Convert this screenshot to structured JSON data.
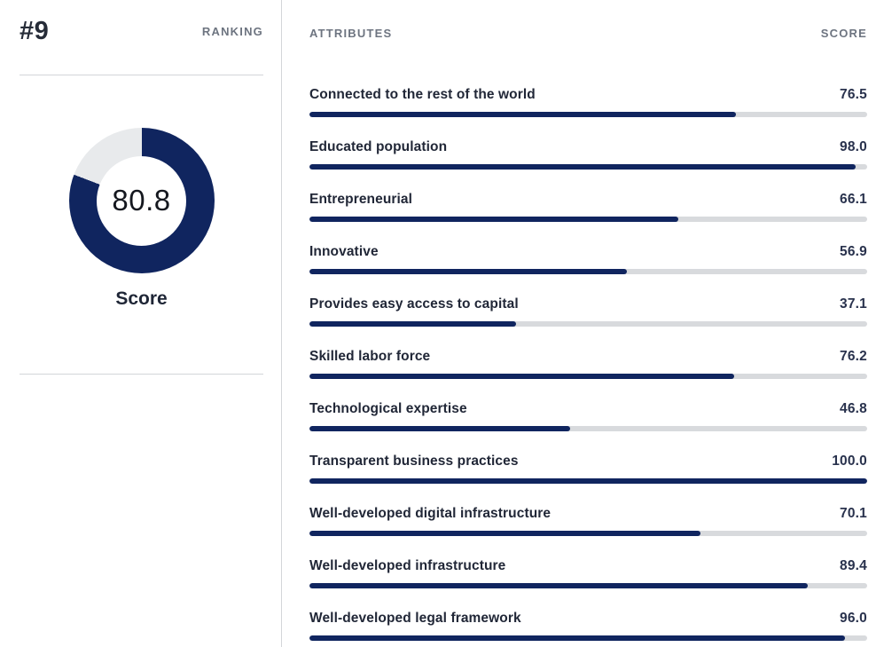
{
  "left_panel": {
    "rank": "#9",
    "ranking_label": "RANKING",
    "score_value": "80.8",
    "score_caption": "Score"
  },
  "right_panel": {
    "attributes_header": "ATTRIBUTES",
    "score_header": "SCORE"
  },
  "attributes": [
    {
      "label": "Connected to the rest of the world",
      "score": "76.5",
      "value": 76.5
    },
    {
      "label": "Educated population",
      "score": "98.0",
      "value": 98.0
    },
    {
      "label": "Entrepreneurial",
      "score": "66.1",
      "value": 66.1
    },
    {
      "label": "Innovative",
      "score": "56.9",
      "value": 56.9
    },
    {
      "label": "Provides easy access to capital",
      "score": "37.1",
      "value": 37.1
    },
    {
      "label": "Skilled labor force",
      "score": "76.2",
      "value": 76.2
    },
    {
      "label": "Technological expertise",
      "score": "46.8",
      "value": 46.8
    },
    {
      "label": "Transparent business practices",
      "score": "100.0",
      "value": 100.0
    },
    {
      "label": "Well-developed digital infrastructure",
      "score": "70.1",
      "value": 70.1
    },
    {
      "label": "Well-developed infrastructure",
      "score": "89.4",
      "value": 89.4
    },
    {
      "label": "Well-developed legal framework",
      "score": "96.0",
      "value": 96.0
    }
  ],
  "colors": {
    "navy": "#10255f",
    "bar_track": "#d8dadd",
    "donut_track": "#e8eaec",
    "divider": "#d3d5d9",
    "heading_gray": "#6d7480",
    "text_dark": "#212737"
  },
  "chart_data": [
    {
      "type": "pie",
      "subtype": "donut-gauge",
      "title": "Score",
      "center_label": "80.8",
      "values": [
        80.8,
        19.2
      ],
      "labels": [
        "Score",
        "Remainder"
      ],
      "max": 100,
      "colors": [
        "#10255f",
        "#e8eaec"
      ],
      "start_angle": "top",
      "direction": "clockwise",
      "ranking": "#9"
    },
    {
      "type": "bar",
      "orientation": "horizontal",
      "title": "ATTRIBUTES",
      "value_header": "SCORE",
      "categories": [
        "Connected to the rest of the world",
        "Educated population",
        "Entrepreneurial",
        "Innovative",
        "Provides easy access to capital",
        "Skilled labor force",
        "Technological expertise",
        "Transparent business practices",
        "Well-developed digital infrastructure",
        "Well-developed infrastructure",
        "Well-developed legal framework"
      ],
      "values": [
        76.5,
        98.0,
        66.1,
        56.9,
        37.1,
        76.2,
        46.8,
        100.0,
        70.1,
        89.4,
        96.0
      ],
      "xlim": [
        0,
        100
      ],
      "grid": false,
      "bar_color": "#10255f",
      "track_color": "#d8dadd"
    }
  ]
}
